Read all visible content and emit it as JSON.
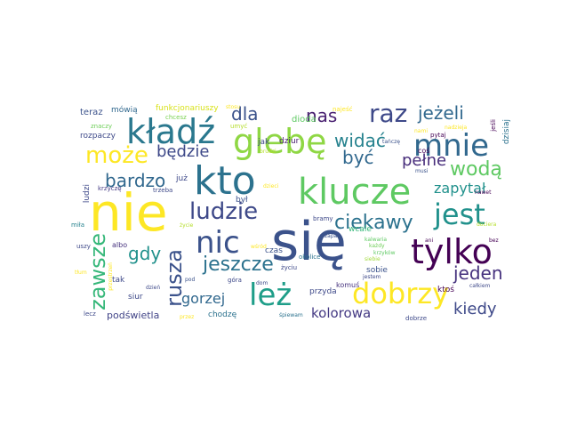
{
  "word_cloud": {
    "words": [
      {
        "text": "się",
        "color": "#3b528b"
      },
      {
        "text": "nie",
        "color": "#fde725"
      },
      {
        "text": "kto",
        "color": "#2c728e"
      },
      {
        "text": "klucze",
        "color": "#5ec962"
      },
      {
        "text": "glebę",
        "color": "#8fd744"
      },
      {
        "text": "kładź",
        "color": "#2a788e"
      },
      {
        "text": "tylko",
        "color": "#440154"
      },
      {
        "text": "mnie",
        "color": "#31688e"
      },
      {
        "text": "jest",
        "color": "#21918c"
      },
      {
        "text": "ludzie",
        "color": "#3e4989"
      },
      {
        "text": "nic",
        "color": "#3b528b"
      },
      {
        "text": "leż",
        "color": "#1f9e89"
      },
      {
        "text": "dobrzy",
        "color": "#fde725"
      },
      {
        "text": "raz",
        "color": "#3e4989"
      },
      {
        "text": "może",
        "color": "#fde725"
      },
      {
        "text": "jeszcze",
        "color": "#2c728e"
      },
      {
        "text": "zawsze",
        "color": "#35b779"
      },
      {
        "text": "ciekawy",
        "color": "#2c728e"
      },
      {
        "text": "rusza",
        "color": "#3b528b"
      },
      {
        "text": "wodą",
        "color": "#5ec962"
      },
      {
        "text": "gdy",
        "color": "#21918c"
      },
      {
        "text": "jeden",
        "color": "#46327e"
      },
      {
        "text": "bardzo",
        "color": "#31688e"
      },
      {
        "text": "widać",
        "color": "#26828e"
      },
      {
        "text": "być",
        "color": "#31688e"
      },
      {
        "text": "jeżeli",
        "color": "#31688e"
      },
      {
        "text": "nas",
        "color": "#481f70"
      },
      {
        "text": "dla",
        "color": "#3b528b"
      },
      {
        "text": "będzie",
        "color": "#3e4989"
      },
      {
        "text": "pełne",
        "color": "#472d7b"
      },
      {
        "text": "kiedy",
        "color": "#3e4989"
      },
      {
        "text": "gorzej",
        "color": "#31688e"
      },
      {
        "text": "zapytał",
        "color": "#21918c"
      },
      {
        "text": "kolorowa",
        "color": "#443983"
      },
      {
        "text": "podświetla",
        "color": "#414487"
      },
      {
        "text": "teraz",
        "color": "#3b528b"
      },
      {
        "text": "mówią",
        "color": "#31688e"
      },
      {
        "text": "funkcjonariuszy",
        "color": "#d8e219"
      },
      {
        "text": "chcesz",
        "color": "#7ad151"
      },
      {
        "text": "umyć",
        "color": "#b5de2b"
      },
      {
        "text": "najeść",
        "color": "#fde725"
      },
      {
        "text": "stosu",
        "color": "#fde725"
      },
      {
        "text": "jeśli",
        "color": "#440154"
      },
      {
        "text": "dzisiaj",
        "color": "#2c728e"
      },
      {
        "text": "znaczy",
        "color": "#6ece58"
      },
      {
        "text": "rozpaczy",
        "color": "#3e4989"
      },
      {
        "text": "dioda",
        "color": "#5ec962"
      },
      {
        "text": "tańczę",
        "color": "#3b528b"
      },
      {
        "text": "nami",
        "color": "#fde725"
      },
      {
        "text": "nadzieja",
        "color": "#fde725"
      },
      {
        "text": "pytaj",
        "color": "#440154"
      },
      {
        "text": "jak",
        "color": "#3e4989"
      },
      {
        "text": "dziur",
        "color": "#481f70"
      },
      {
        "text": "brudzi",
        "color": "#b5de2b"
      },
      {
        "text": "coś",
        "color": "#440154"
      },
      {
        "text": "musi",
        "color": "#3b528b"
      },
      {
        "text": "już",
        "color": "#3e4989"
      },
      {
        "text": "był",
        "color": "#3b528b"
      },
      {
        "text": "dzieci",
        "color": "#fde725"
      },
      {
        "text": "ludzi",
        "color": "#3e4989"
      },
      {
        "text": "krzyczę",
        "color": "#443983"
      },
      {
        "text": "trzeba",
        "color": "#3e4989"
      },
      {
        "text": "miła",
        "color": "#26828e"
      },
      {
        "text": "nawet",
        "color": "#440154"
      },
      {
        "text": "życie",
        "color": "#b5de2b"
      },
      {
        "text": "bramy",
        "color": "#3e4989"
      },
      {
        "text": "czas",
        "color": "#3b528b"
      },
      {
        "text": "zapas",
        "color": "#3b528b"
      },
      {
        "text": "wcale",
        "color": "#35b779"
      },
      {
        "text": "dociera",
        "color": "#b5de2b"
      },
      {
        "text": "okolice",
        "color": "#2c728e"
      },
      {
        "text": "uszy",
        "color": "#3e4989"
      },
      {
        "text": "albo",
        "color": "#46327e"
      },
      {
        "text": "kalwaria",
        "color": "#5ec962"
      },
      {
        "text": "ani",
        "color": "#440154"
      },
      {
        "text": "bez",
        "color": "#440154"
      },
      {
        "text": "wśród",
        "color": "#fde725"
      },
      {
        "text": "siebie",
        "color": "#9fda3a"
      },
      {
        "text": "każdy",
        "color": "#6ece58"
      },
      {
        "text": "krzyków",
        "color": "#5ec962"
      },
      {
        "text": "tłum",
        "color": "#fde725"
      },
      {
        "text": "tak",
        "color": "#3e4989"
      },
      {
        "text": "pod",
        "color": "#3b528b"
      },
      {
        "text": "sobie",
        "color": "#3b528b"
      },
      {
        "text": "komuś",
        "color": "#46327e"
      },
      {
        "text": "siur",
        "color": "#3e4989"
      },
      {
        "text": "góra",
        "color": "#3e4989"
      },
      {
        "text": "dom",
        "color": "#3e4989"
      },
      {
        "text": "przyda",
        "color": "#3e4989"
      },
      {
        "text": "jestem",
        "color": "#3e4989"
      },
      {
        "text": "ktoś",
        "color": "#440154"
      },
      {
        "text": "całkiem",
        "color": "#3e4989"
      },
      {
        "text": "przestrzeń",
        "color": "#fde725"
      },
      {
        "text": "dzień",
        "color": "#3e4989"
      },
      {
        "text": "życiu",
        "color": "#3e4989"
      },
      {
        "text": "lecz",
        "color": "#3e4989"
      },
      {
        "text": "chodzę",
        "color": "#2c728e"
      },
      {
        "text": "śpiewam",
        "color": "#2c728e"
      },
      {
        "text": "przez",
        "color": "#fde725"
      },
      {
        "text": "dobrze",
        "color": "#3e4989"
      }
    ]
  }
}
